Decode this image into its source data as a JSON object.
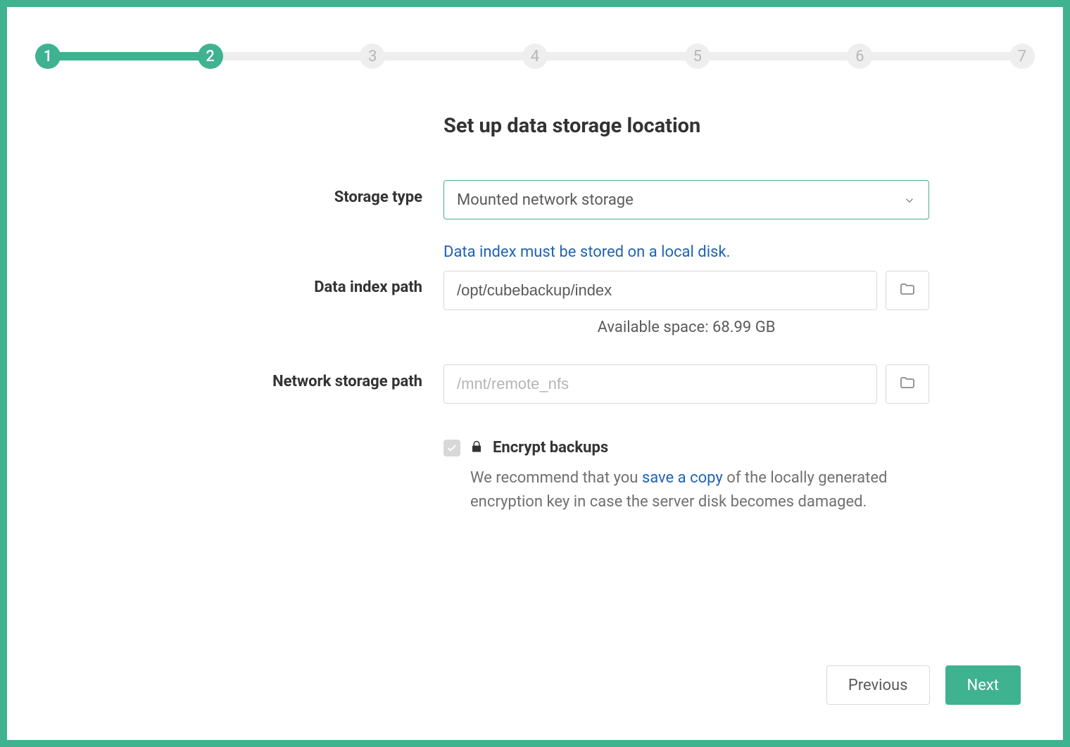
{
  "colors": {
    "accent": "#3fb290",
    "link": "#1f63b5",
    "text_primary": "#333333",
    "text_secondary": "#5a5a5a",
    "text_muted": "#707070",
    "border": "#d9d9d9",
    "stepper_inactive_bg": "#eeeeee",
    "stepper_inactive_text": "#b7b7b7"
  },
  "stepper": {
    "total": 7,
    "current": 2,
    "labels": [
      "1",
      "2",
      "3",
      "4",
      "5",
      "6",
      "7"
    ]
  },
  "title": "Set up data storage location",
  "form": {
    "storage_type": {
      "label": "Storage type",
      "value": "Mounted network storage"
    },
    "data_index": {
      "label": "Data index path",
      "hint_above": "Data index must be stored on a local disk.",
      "value": "/opt/cubebackup/index",
      "hint_below": "Available space: 68.99 GB"
    },
    "network_path": {
      "label": "Network storage path",
      "placeholder": "/mnt/remote_nfs",
      "value": ""
    }
  },
  "encrypt": {
    "checked": true,
    "label": "Encrypt backups",
    "desc_before": "We recommend that you ",
    "desc_link": "save a copy",
    "desc_after": " of the locally generated encryption key in case the server disk becomes damaged."
  },
  "buttons": {
    "previous": "Previous",
    "next": "Next"
  }
}
